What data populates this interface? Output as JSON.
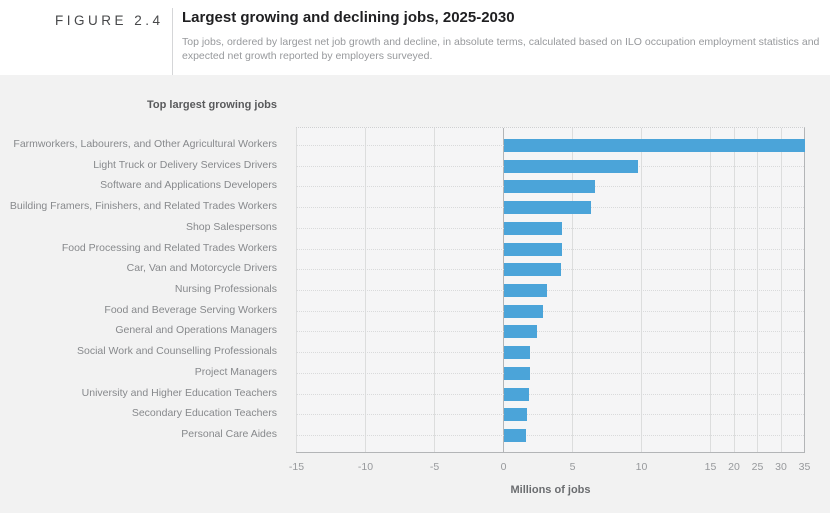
{
  "header": {
    "figure_label": "FIGURE 2.4",
    "title": "Largest growing and declining jobs, 2025-2030",
    "subtitle": [
      "Top jobs, ordered by largest net job growth and decline, in absolute terms, calculated based on ILO occupation employment statistics and",
      "expected net growth  reported by employers surveyed."
    ]
  },
  "chart_data": {
    "type": "bar",
    "orientation": "horizontal",
    "title": "Top largest growing jobs",
    "xlabel": "Millions of jobs",
    "categories": [
      "Farmworkers, Labourers, and Other Agricultural Workers",
      "Light Truck or Delivery Services Drivers",
      "Software and Applications Developers",
      "Building Framers, Finishers, and Related Trades Workers",
      "Shop Salespersons",
      "Food Processing and Related Trades Workers",
      "Car, Van and Motorcycle Drivers",
      "Nursing Professionals",
      "Food and Beverage Serving Workers",
      "General and Operations Managers",
      "Social Work and Counselling Professionals",
      "Project Managers",
      "University and Higher Education Teachers",
      "Secondary Education Teachers",
      "Personal Care Aides"
    ],
    "values": [
      35,
      9.7,
      6.6,
      6.3,
      4.2,
      4.2,
      4.1,
      3.1,
      2.8,
      2.4,
      1.9,
      1.9,
      1.8,
      1.7,
      1.6
    ],
    "x_ticks": [
      -15,
      -10,
      -5,
      0,
      5,
      10,
      15,
      20,
      25,
      30,
      35
    ],
    "xlim": [
      -15,
      35
    ],
    "axis_note": "x-axis scale is compressed beyond 15",
    "bar_color": "#4ba4d9",
    "grid": true,
    "units": "millions of jobs"
  }
}
